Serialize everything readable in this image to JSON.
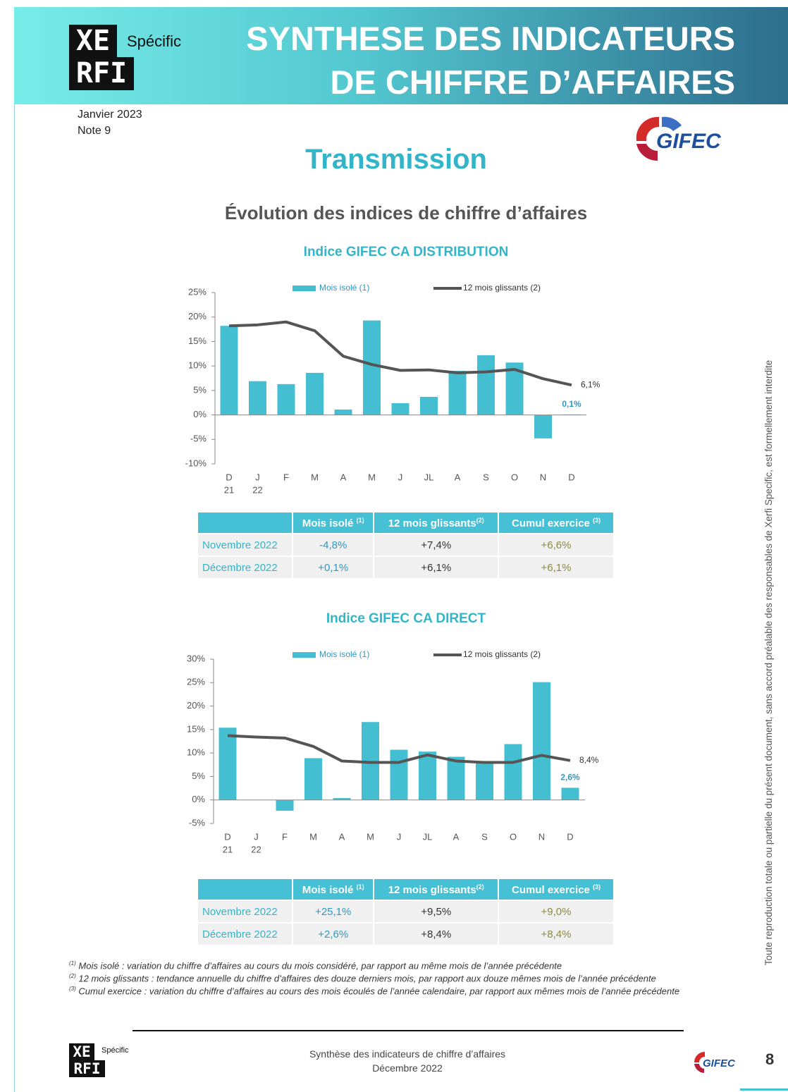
{
  "header": {
    "logo_top": "XE",
    "logo_bottom": "RFI",
    "logo_tag": "Spécific",
    "title": [
      "SYNTHESE DES INDICATEURS",
      "DE CHIFFRE D’AFFAIRES"
    ],
    "date": "Janvier 2023",
    "note": "Note 9",
    "partner": "GIFEC"
  },
  "section": "Transmission",
  "subtitle": "Évolution des indices de chiffre d’affaires",
  "chart_data": [
    {
      "type": "combo",
      "title": "Indice GIFEC CA DISTRIBUTION",
      "categories": [
        "D",
        "J",
        "F",
        "M",
        "A",
        "M",
        "J",
        "JL",
        "A",
        "S",
        "O",
        "N",
        "D"
      ],
      "category_years": [
        "21",
        "22",
        null,
        null,
        null,
        null,
        null,
        null,
        null,
        null,
        null,
        null,
        null
      ],
      "ylim": [
        -10,
        25
      ],
      "yticks": [
        {
          "value": -10,
          "label": "-10%"
        },
        {
          "value": -5,
          "label": "-5%"
        },
        {
          "value": 0,
          "label": "0%"
        },
        {
          "value": 5,
          "label": "5%"
        },
        {
          "value": 10,
          "label": "10%"
        },
        {
          "value": 15,
          "label": "15%"
        },
        {
          "value": 20,
          "label": "20%"
        },
        {
          "value": 25,
          "label": "25%"
        }
      ],
      "series": [
        {
          "name": "Mois isolé (1)",
          "type": "bar",
          "color": "#44bfd2",
          "values": [
            18.2,
            6.9,
            6.3,
            8.6,
            1.1,
            19.3,
            2.4,
            3.7,
            9.0,
            12.2,
            10.7,
            -4.8,
            0.1
          ],
          "value_labels": [
            null,
            null,
            null,
            null,
            null,
            null,
            null,
            null,
            null,
            null,
            null,
            null,
            "0,1%"
          ]
        },
        {
          "name": "12 mois glissants (2)",
          "type": "line",
          "color": "#555555",
          "values": [
            18.2,
            18.4,
            19.0,
            17.2,
            12.0,
            10.3,
            9.1,
            9.2,
            8.6,
            8.8,
            9.3,
            7.4,
            6.1
          ],
          "value_labels": [
            null,
            null,
            null,
            null,
            null,
            null,
            null,
            null,
            null,
            null,
            null,
            null,
            "6,1%"
          ]
        }
      ]
    },
    {
      "type": "combo",
      "title": "Indice GIFEC CA DIRECT",
      "categories": [
        "D",
        "J",
        "F",
        "M",
        "A",
        "M",
        "J",
        "JL",
        "A",
        "S",
        "O",
        "N",
        "D"
      ],
      "category_years": [
        "21",
        "22",
        null,
        null,
        null,
        null,
        null,
        null,
        null,
        null,
        null,
        null,
        null
      ],
      "ylim": [
        -5,
        30
      ],
      "yticks": [
        {
          "value": -5,
          "label": "-5%"
        },
        {
          "value": 0,
          "label": "0%"
        },
        {
          "value": 5,
          "label": "5%"
        },
        {
          "value": 10,
          "label": "10%"
        },
        {
          "value": 15,
          "label": "15%"
        },
        {
          "value": 20,
          "label": "20%"
        },
        {
          "value": 25,
          "label": "25%"
        },
        {
          "value": 30,
          "label": "30%"
        }
      ],
      "series": [
        {
          "name": "Mois isolé (1)",
          "type": "bar",
          "color": "#44bfd2",
          "values": [
            15.4,
            0,
            -2.3,
            8.9,
            0.4,
            16.6,
            10.7,
            10.3,
            9.2,
            7.9,
            11.9,
            25.1,
            2.6
          ],
          "value_labels": [
            null,
            null,
            null,
            null,
            null,
            null,
            null,
            null,
            null,
            null,
            null,
            null,
            "2,6%"
          ]
        },
        {
          "name": "12 mois glissants (2)",
          "type": "line",
          "color": "#555555",
          "values": [
            13.7,
            13.4,
            13.2,
            11.4,
            8.3,
            8.0,
            8.0,
            9.6,
            8.3,
            8.0,
            8.0,
            9.5,
            8.4
          ],
          "value_labels": [
            null,
            null,
            null,
            null,
            null,
            null,
            null,
            null,
            null,
            null,
            null,
            null,
            "8,4%"
          ]
        }
      ]
    }
  ],
  "tables": [
    {
      "header": [
        {
          "text": "Mois isolé",
          "note": "(1)"
        },
        {
          "text": "12 mois glissants",
          "note": "(2)"
        },
        {
          "text": "Cumul exercice",
          "note": "(3)"
        }
      ],
      "rows": [
        [
          "Novembre 2022",
          "-4,8%",
          "+7,4%",
          "+6,6%"
        ],
        [
          "Décembre 2022",
          "+0,1%",
          "+6,1%",
          "+6,1%"
        ]
      ]
    },
    {
      "header": [
        {
          "text": "Mois isolé",
          "note": "(1)"
        },
        {
          "text": "12 mois glissants",
          "note": "(2)"
        },
        {
          "text": "Cumul exercice",
          "note": "(3)"
        }
      ],
      "rows": [
        [
          "Novembre 2022",
          "+25,1%",
          "+9,5%",
          "+9,0%"
        ],
        [
          "Décembre 2022",
          "+2,6%",
          "+8,4%",
          "+8,4%"
        ]
      ]
    }
  ],
  "footnotes": [
    {
      "mark": "(1)",
      "text": "Mois isolé : variation du chiffre d’affaires au cours du mois considéré, par rapport au même mois de l’année précédente"
    },
    {
      "mark": "(2)",
      "text": "12 mois glissants : tendance annuelle du chiffre d’affaires des douze derniers mois, par rapport aux douze mêmes mois de l’année précédente"
    },
    {
      "mark": "(3)",
      "text": "Cumul exercice : variation du chiffre d’affaires au cours des mois écoulés de l’année calendaire, par rapport aux mêmes mois de l’année précédente"
    }
  ],
  "side_text": "Toute reproduction totale ou partielle du présent document, sans accord préalable des responsables de Xerfi Specific, est formellement interdite",
  "footer": {
    "lines": [
      "Synthèse des indicateurs de chiffre d’affaires",
      "Décembre 2022"
    ],
    "page": "8"
  }
}
